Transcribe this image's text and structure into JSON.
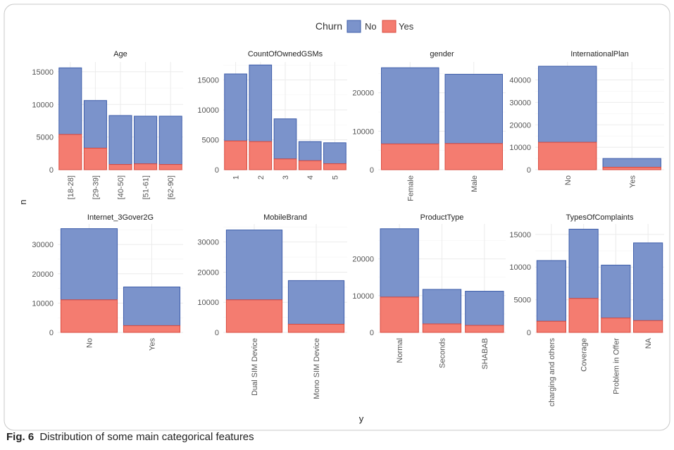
{
  "caption": {
    "label": "Fig. 6",
    "text": "Distribution of some main categorical features"
  },
  "colors": {
    "no": "#7B93CB",
    "no_edge": "#3D5DAA",
    "yes": "#F47C70",
    "yes_edge": "#D94A3E",
    "grid": "#EBEBEB",
    "axis_text": "#555555"
  },
  "chart_data": {
    "type": "bar",
    "stacked": true,
    "facets": true,
    "legend": {
      "title": "Churn",
      "position": "top",
      "entries": [
        "No",
        "Yes"
      ]
    },
    "xlabel": "y",
    "ylabel": "n",
    "grid": true,
    "panels": [
      {
        "title": "Age",
        "categories": [
          "[18-28]",
          "[29-39]",
          "[40-50]",
          "[51-61]",
          "[62-90]"
        ],
        "rotate_labels": true,
        "ylim": [
          0,
          16500
        ],
        "yticks": [
          0,
          5000,
          10000,
          15000
        ],
        "series": [
          {
            "name": "Yes",
            "values": [
              5400,
              3300,
              800,
              900,
              800
            ]
          },
          {
            "name": "No",
            "values": [
              10200,
              7300,
              7500,
              7300,
              7400
            ]
          }
        ]
      },
      {
        "title": "CountOfOwnedGSMs",
        "categories": [
          "1",
          "2",
          "3",
          "4",
          "5"
        ],
        "rotate_labels": true,
        "ylim": [
          0,
          18000
        ],
        "yticks": [
          0,
          5000,
          10000,
          15000
        ],
        "series": [
          {
            "name": "Yes",
            "values": [
              4800,
              4700,
              1800,
              1500,
              1000
            ]
          },
          {
            "name": "No",
            "values": [
              11200,
              12800,
              6700,
              3200,
              3500
            ]
          }
        ]
      },
      {
        "title": "gender",
        "categories": [
          "Female",
          "Male"
        ],
        "rotate_labels": true,
        "ylim": [
          0,
          28000
        ],
        "yticks": [
          0,
          10000,
          20000
        ],
        "series": [
          {
            "name": "Yes",
            "values": [
              6700,
              6800
            ]
          },
          {
            "name": "No",
            "values": [
              19800,
              18000
            ]
          }
        ]
      },
      {
        "title": "InternationalPlan",
        "categories": [
          "No",
          "Yes"
        ],
        "rotate_labels": true,
        "ylim": [
          0,
          48000
        ],
        "yticks": [
          0,
          10000,
          20000,
          30000,
          40000
        ],
        "series": [
          {
            "name": "Yes",
            "values": [
              12200,
              1100
            ]
          },
          {
            "name": "No",
            "values": [
              33900,
              3900
            ]
          }
        ]
      },
      {
        "title": "Internet_3Gover2G",
        "categories": [
          "No",
          "Yes"
        ],
        "rotate_labels": true,
        "ylim": [
          0,
          37000
        ],
        "yticks": [
          0,
          10000,
          20000,
          30000
        ],
        "series": [
          {
            "name": "Yes",
            "values": [
              11100,
              2300
            ]
          },
          {
            "name": "No",
            "values": [
              24300,
              13200
            ]
          }
        ]
      },
      {
        "title": "MobileBrand",
        "categories": [
          "Dual SIM Device",
          "Mono SIM Device"
        ],
        "rotate_labels": true,
        "ylim": [
          0,
          36000
        ],
        "yticks": [
          0,
          10000,
          20000,
          30000
        ],
        "series": [
          {
            "name": "Yes",
            "values": [
              10800,
              2700
            ]
          },
          {
            "name": "No",
            "values": [
              23200,
              14500
            ]
          }
        ]
      },
      {
        "title": "ProductType",
        "categories": [
          "Normal",
          "Seconds",
          "SHABAB"
        ],
        "rotate_labels": true,
        "ylim": [
          0,
          29500
        ],
        "yticks": [
          0,
          10000,
          20000
        ],
        "series": [
          {
            "name": "Yes",
            "values": [
              9600,
              2300,
              1900
            ]
          },
          {
            "name": "No",
            "values": [
              18600,
              9400,
              9300
            ]
          }
        ]
      },
      {
        "title": "TypesOfComplaints",
        "categories": [
          "charging and others",
          "Coverage",
          "Problem in Offer",
          "NA"
        ],
        "rotate_labels": true,
        "ylim": [
          0,
          16600
        ],
        "yticks": [
          0,
          5000,
          10000,
          15000
        ],
        "series": [
          {
            "name": "Yes",
            "values": [
              1700,
              5200,
              2200,
              1800
            ]
          },
          {
            "name": "No",
            "values": [
              9300,
              10600,
              8100,
              11900
            ]
          }
        ]
      }
    ]
  }
}
